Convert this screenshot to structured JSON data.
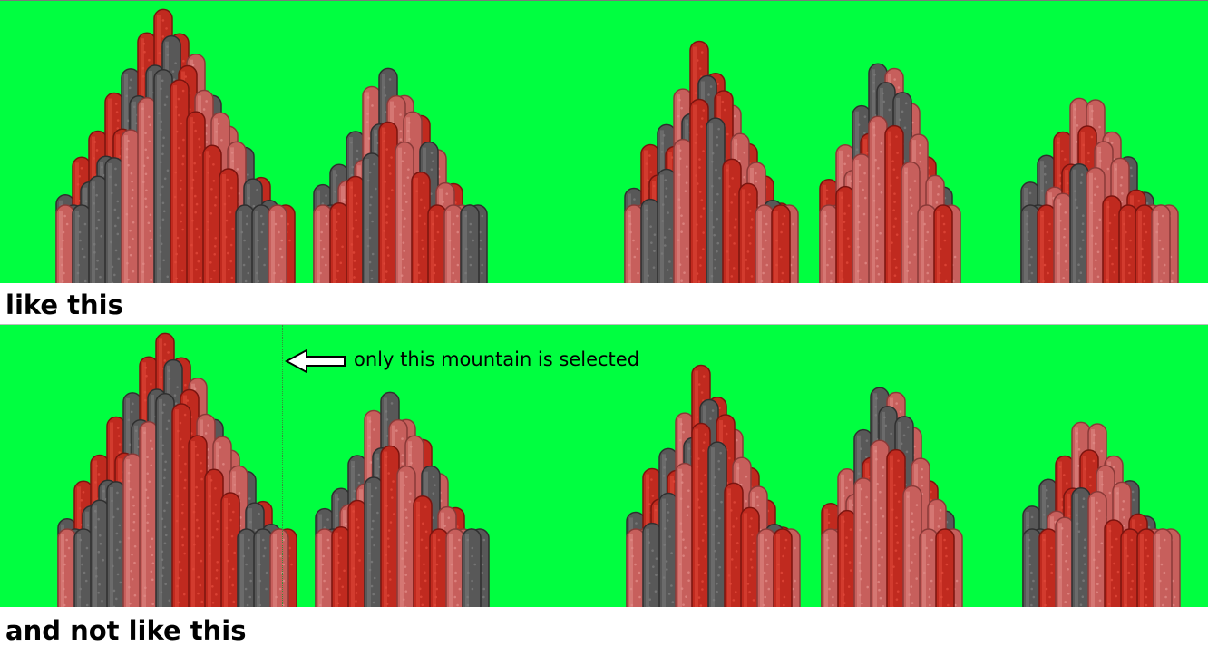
{
  "captions": {
    "good": "like this",
    "bad": "and not like this"
  },
  "annotation": {
    "text": "only this mountain is selected",
    "icon": "arrow-left-icon"
  },
  "colors": {
    "background": "#00ff40",
    "pillar_red": "#c02a1f",
    "pillar_pink": "#c75f5c",
    "pillar_gray": "#585858"
  },
  "mountains": [
    {
      "name": "mountain-1",
      "selected": true
    },
    {
      "name": "mountain-2",
      "selected": false
    },
    {
      "name": "mountain-3",
      "selected": false
    },
    {
      "name": "mountain-4",
      "selected": false
    },
    {
      "name": "mountain-5",
      "selected": false
    }
  ]
}
